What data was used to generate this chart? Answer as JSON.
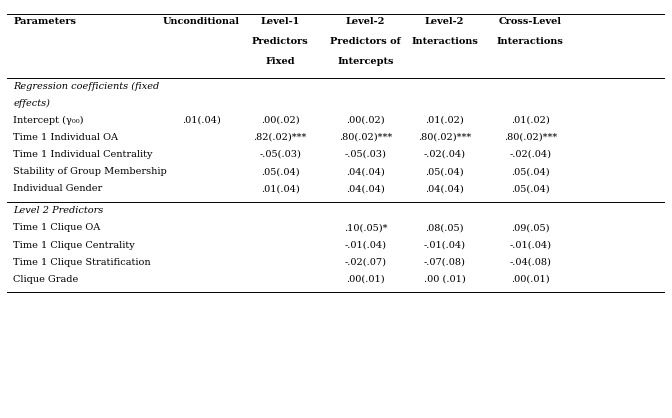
{
  "bg_color": "#ffffff",
  "text_color": "#000000",
  "font_size": 7.0,
  "header_font_size": 7.0,
  "rows": [
    {
      "param": "Intercept (γ₀₀)",
      "vals": [
        ".01(.04)",
        ".00(.02)",
        ".00(.02)",
        ".01(.02)",
        ".01(.02)"
      ]
    },
    {
      "param": "Time 1 Individual OA",
      "vals": [
        "",
        ".82(.02)***",
        ".80(.02)***",
        ".80(.02)***",
        ".80(.02)***"
      ]
    },
    {
      "param": "Time 1 Individual Centrality",
      "vals": [
        "",
        "-.05(.03)",
        "-.05(.03)",
        "-.02(.04)",
        "-.02(.04)"
      ]
    },
    {
      "param": "Stability of Group Membership",
      "vals": [
        "",
        ".05(.04)",
        ".04(.04)",
        ".05(.04)",
        ".05(.04)"
      ]
    },
    {
      "param": "Individual Gender",
      "vals": [
        "",
        ".01(.04)",
        ".04(.04)",
        ".04(.04)",
        ".05(.04)"
      ]
    },
    {
      "param": "Time 1 Clique OA",
      "vals": [
        "",
        "",
        ".10(.05)*",
        ".08(.05)",
        ".09(.05)"
      ]
    },
    {
      "param": "Time 1 Clique Centrality",
      "vals": [
        "",
        "",
        "-.01(.04)",
        "-.01(.04)",
        "-.01(.04)"
      ]
    },
    {
      "param": "Time 1 Clique Stratification",
      "vals": [
        "",
        "",
        "-.02(.07)",
        "-.07(.08)",
        "-.04(.08)"
      ]
    },
    {
      "param": "Clique Grade",
      "vals": [
        "",
        "",
        ".00(.01)",
        ".00 (.01)",
        ".00(.01)"
      ]
    }
  ]
}
